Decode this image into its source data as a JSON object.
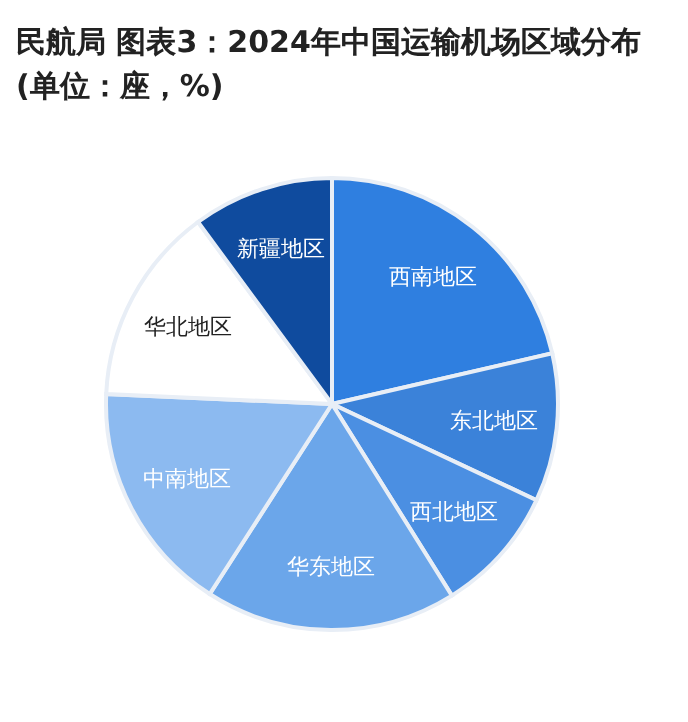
{
  "chart_data": {
    "type": "pie",
    "title": "民航局 图表3：2024年中国运输机场区域分布(单位：座，%)",
    "categories": [
      "西南地区",
      "东北地区",
      "西北地区",
      "华东地区",
      "中南地区",
      "华北地区",
      "新疆地区"
    ],
    "values": [
      21.4,
      10.6,
      9.1,
      18.0,
      16.6,
      14.2,
      10.1
    ],
    "colors": [
      "#2f7fe0",
      "#3b82d9",
      "#4b8fe2",
      "#6ba6ea",
      "#8cbaf0",
      "#ffffff",
      "#0f4b9e"
    ],
    "legend": false
  }
}
